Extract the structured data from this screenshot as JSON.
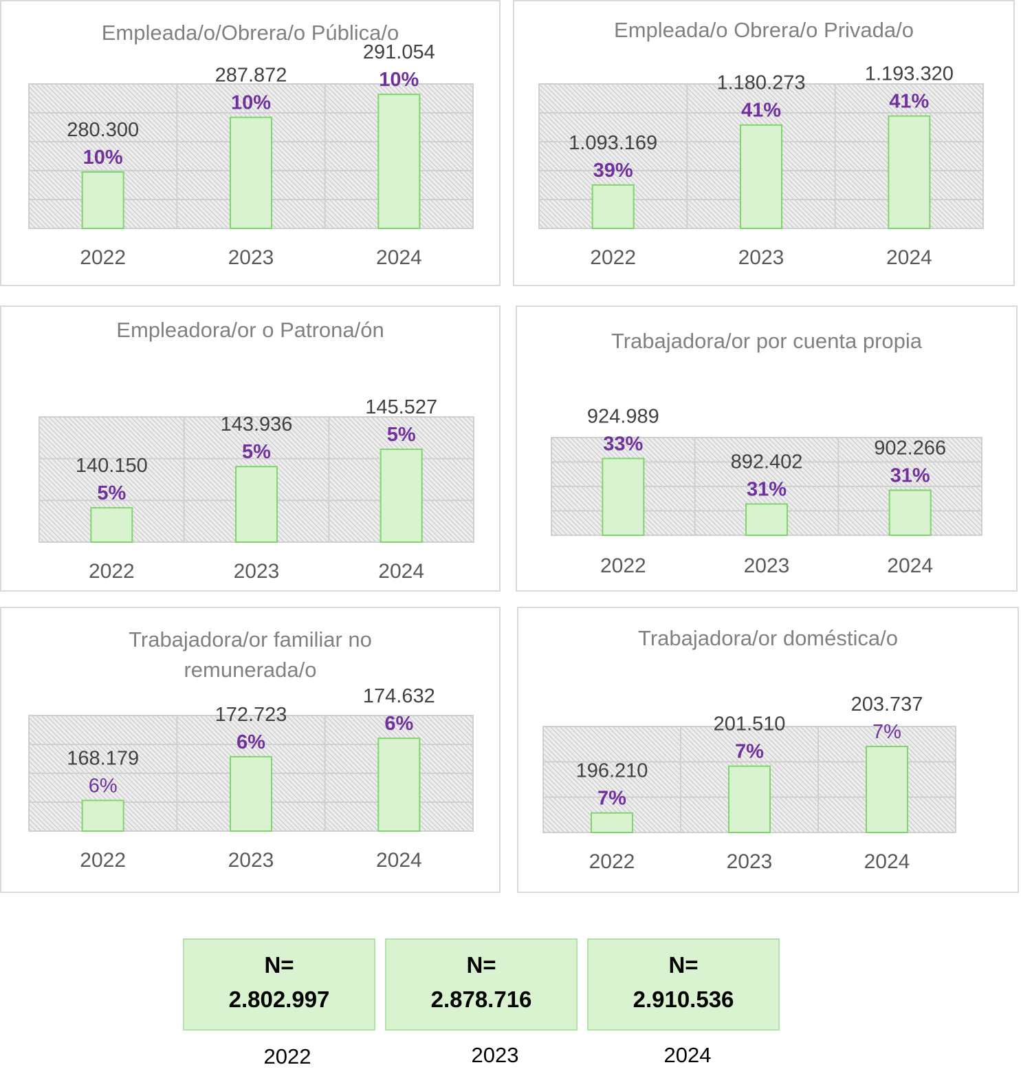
{
  "colors": {
    "bar_fill": "#d9f2d0",
    "bar_stroke": "#7fd46b",
    "plot_bg": "#ededed",
    "hatch": "#c4c4c4",
    "grid": "#cfcfcf",
    "percent_label": "#7030a0",
    "value_label": "#404040",
    "title": "#808080",
    "total_box_fill": "#d9f2d0",
    "total_box_border": "#b3e2a8"
  },
  "chart_data": [
    {
      "type": "bar",
      "title": "Empleada/o/Obrera/o Pública/o",
      "categories": [
        "2022",
        "2023",
        "2024"
      ],
      "values": [
        280300,
        287872,
        291054
      ],
      "value_labels": [
        "280.300",
        "287.872",
        "291.054"
      ],
      "percent_labels": [
        "10%",
        "10%",
        "10%"
      ],
      "percent_bold": [
        true,
        true,
        true
      ],
      "ylim": [
        272500,
        292500
      ],
      "grid": true,
      "legend": "none"
    },
    {
      "type": "bar",
      "title": "Empleada/o Obrera/o Privada/o",
      "categories": [
        "2022",
        "2023",
        "2024"
      ],
      "values": [
        1093169,
        1180273,
        1193320
      ],
      "value_labels": [
        "1.093.169",
        "1.180.273",
        "1.193.320"
      ],
      "percent_labels": [
        "39%",
        "41%",
        "41%"
      ],
      "percent_bold": [
        true,
        true,
        true
      ],
      "ylim": [
        1030000,
        1240000
      ],
      "grid": true,
      "legend": "none"
    },
    {
      "type": "bar",
      "title": "Empleadora/or o Patrona/ón",
      "categories": [
        "2022",
        "2023",
        "2024"
      ],
      "values": [
        140150,
        143936,
        145527
      ],
      "value_labels": [
        "140.150",
        "143.936",
        "145.527"
      ],
      "percent_labels": [
        "5%",
        "5%",
        "5%"
      ],
      "percent_bold": [
        true,
        true,
        true
      ],
      "ylim": [
        137000,
        148500
      ],
      "grid": true,
      "legend": "none"
    },
    {
      "type": "bar",
      "title": "Trabajadora/or por cuenta propia",
      "categories": [
        "2022",
        "2023",
        "2024"
      ],
      "values": [
        924989,
        892402,
        902266
      ],
      "value_labels": [
        "924.989",
        "892.402",
        "902.266"
      ],
      "percent_labels": [
        "33%",
        "31%",
        "31%"
      ],
      "percent_bold": [
        true,
        true,
        true
      ],
      "ylim": [
        870000,
        940000
      ],
      "grid": true,
      "legend": "none"
    },
    {
      "type": "bar",
      "title": "Trabajadora/or familiar no remunerada/o",
      "categories": [
        "2022",
        "2023",
        "2024"
      ],
      "values": [
        168179,
        172723,
        174632
      ],
      "value_labels": [
        "168.179",
        "172.723",
        "174.632"
      ],
      "percent_labels": [
        "6%",
        "6%",
        "6%"
      ],
      "percent_bold": [
        false,
        true,
        true
      ],
      "ylim": [
        165000,
        177000
      ],
      "grid": true,
      "legend": "none"
    },
    {
      "type": "bar",
      "title": "Trabajadora/or doméstica/o",
      "categories": [
        "2022",
        "2023",
        "2024"
      ],
      "values": [
        196210,
        201510,
        203737
      ],
      "value_labels": [
        "196.210",
        "201.510",
        "203.737"
      ],
      "percent_labels": [
        "7%",
        "7%",
        "7%"
      ],
      "percent_bold": [
        true,
        true,
        false
      ],
      "ylim": [
        194000,
        206000
      ],
      "grid": true,
      "legend": "none"
    }
  ],
  "totals": [
    {
      "label": "N=",
      "value": "2.802.997",
      "year": "2022"
    },
    {
      "label": "N=",
      "value": "2.878.716",
      "year": "2023"
    },
    {
      "label": "N=",
      "value": "2.910.536",
      "year": "2024"
    }
  ]
}
